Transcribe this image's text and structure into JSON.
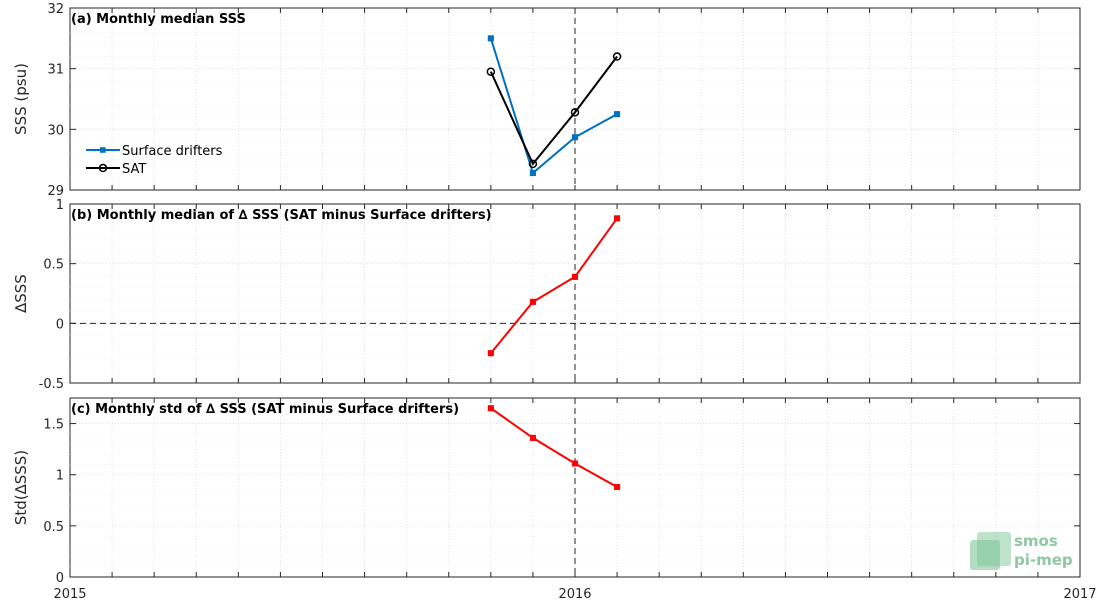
{
  "chart_data": [
    {
      "type": "line",
      "title": "(a) Monthly median SSS",
      "ylabel": "SSS (psu)",
      "ylim": [
        29,
        32
      ],
      "yticks": [
        "29",
        "30",
        "31",
        "32"
      ],
      "legend_position": "left",
      "series": [
        {
          "name": "Surface drifters",
          "color": "#0072bd",
          "marker": "square",
          "x": [
            "2015-11",
            "2015-12",
            "2016-01",
            "2016-02"
          ],
          "values": [
            31.5,
            29.28,
            29.87,
            30.25
          ]
        },
        {
          "name": "SAT",
          "color": "#000000",
          "marker": "circle",
          "x": [
            "2015-11",
            "2015-12",
            "2016-01",
            "2016-02"
          ],
          "values": [
            30.95,
            29.43,
            30.28,
            31.2
          ]
        }
      ]
    },
    {
      "type": "line",
      "title": "(b) Monthly median of ∆ SSS (SAT minus Surface drifters)",
      "ylabel": "∆SSS",
      "ylim": [
        -0.5,
        1
      ],
      "yticks": [
        "-0.5",
        "0",
        "0.5",
        "1"
      ],
      "hline": 0,
      "series": [
        {
          "color": "#ff0000",
          "marker": "square",
          "x": [
            "2015-11",
            "2015-12",
            "2016-01",
            "2016-02"
          ],
          "values": [
            -0.25,
            0.18,
            0.39,
            0.88
          ]
        }
      ]
    },
    {
      "type": "line",
      "title": "(c) Monthly std of ∆ SSS (SAT minus Surface drifters)",
      "ylabel": "Std(∆SSS)",
      "ylim": [
        0,
        1.75
      ],
      "yticks": [
        "0",
        "0.5",
        "1",
        "1.5"
      ],
      "series": [
        {
          "color": "#ff0000",
          "marker": "square",
          "x": [
            "2015-11",
            "2015-12",
            "2016-01",
            "2016-02"
          ],
          "values": [
            1.65,
            1.36,
            1.11,
            0.88
          ]
        }
      ]
    }
  ],
  "xaxis": {
    "range": [
      "2015-01",
      "2017-01"
    ],
    "tick_labels": [
      "2015",
      "2016",
      "2017"
    ],
    "vline": "2016-01"
  },
  "logo": {
    "line1": "smos",
    "line2": "pi-mep"
  }
}
